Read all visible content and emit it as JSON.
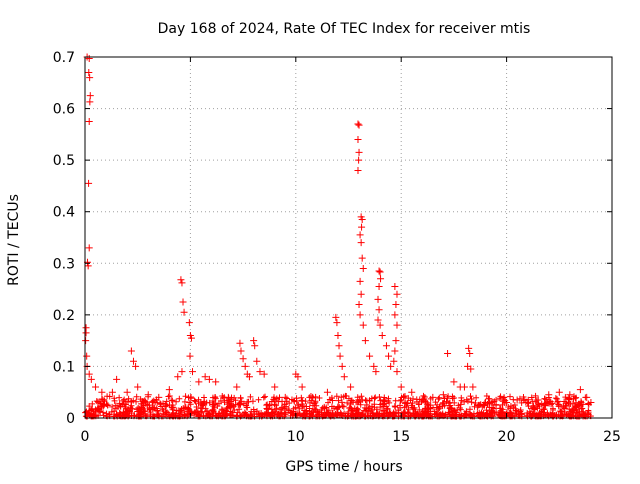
{
  "chart_data": {
    "type": "scatter",
    "title": "Day 168 of 2024, Rate Of TEC Index for receiver mtis",
    "xlabel": "GPS time / hours",
    "ylabel": "ROTI / TECUs",
    "xlim": [
      0,
      25
    ],
    "ylim": [
      0,
      0.7
    ],
    "xticks": [
      0,
      5,
      10,
      15,
      20,
      25
    ],
    "xtick_labels": [
      "0",
      "5",
      "10",
      "15",
      "20",
      "25"
    ],
    "yticks": [
      0,
      0.1,
      0.2,
      0.3,
      0.4,
      0.5,
      0.6,
      0.7
    ],
    "ytick_labels": [
      "0",
      "0.1",
      "0.2",
      "0.3",
      "0.4",
      "0.5",
      "0.6",
      "0.7"
    ],
    "grid": true,
    "marker": "plus",
    "color": "#ff0000",
    "series": [
      {
        "name": "ROTI",
        "points": [
          [
            0.1,
            0.7
          ],
          [
            0.2,
            0.697
          ],
          [
            0.18,
            0.67
          ],
          [
            0.22,
            0.66
          ],
          [
            0.25,
            0.625
          ],
          [
            0.23,
            0.613
          ],
          [
            0.2,
            0.575
          ],
          [
            0.17,
            0.455
          ],
          [
            0.2,
            0.33
          ],
          [
            0.12,
            0.302
          ],
          [
            0.15,
            0.295
          ],
          [
            0.05,
            0.175
          ],
          [
            0.05,
            0.165
          ],
          [
            0.03,
            0.15
          ],
          [
            0.08,
            0.12
          ],
          [
            0.1,
            0.1
          ],
          [
            0.2,
            0.085
          ],
          [
            0.3,
            0.075
          ],
          [
            0.5,
            0.06
          ],
          [
            0.8,
            0.05
          ],
          [
            1.3,
            0.05
          ],
          [
            1.5,
            0.075
          ],
          [
            2.0,
            0.05
          ],
          [
            2.2,
            0.13
          ],
          [
            2.3,
            0.11
          ],
          [
            2.4,
            0.1
          ],
          [
            2.5,
            0.06
          ],
          [
            3.0,
            0.045
          ],
          [
            3.5,
            0.04
          ],
          [
            4.0,
            0.055
          ],
          [
            4.4,
            0.08
          ],
          [
            4.6,
            0.09
          ],
          [
            4.55,
            0.268
          ],
          [
            4.6,
            0.262
          ],
          [
            4.65,
            0.225
          ],
          [
            4.7,
            0.205
          ],
          [
            4.95,
            0.185
          ],
          [
            5.0,
            0.16
          ],
          [
            5.05,
            0.155
          ],
          [
            4.98,
            0.12
          ],
          [
            5.1,
            0.09
          ],
          [
            5.4,
            0.07
          ],
          [
            5.7,
            0.08
          ],
          [
            5.9,
            0.075
          ],
          [
            6.2,
            0.07
          ],
          [
            6.8,
            0.04
          ],
          [
            7.2,
            0.06
          ],
          [
            7.35,
            0.145
          ],
          [
            7.4,
            0.13
          ],
          [
            7.5,
            0.115
          ],
          [
            7.6,
            0.1
          ],
          [
            7.7,
            0.085
          ],
          [
            7.8,
            0.08
          ],
          [
            8.0,
            0.15
          ],
          [
            8.05,
            0.14
          ],
          [
            8.15,
            0.11
          ],
          [
            8.3,
            0.09
          ],
          [
            8.5,
            0.085
          ],
          [
            9.0,
            0.06
          ],
          [
            9.5,
            0.04
          ],
          [
            10.0,
            0.085
          ],
          [
            10.1,
            0.08
          ],
          [
            10.3,
            0.06
          ],
          [
            10.8,
            0.04
          ],
          [
            11.5,
            0.05
          ],
          [
            11.9,
            0.195
          ],
          [
            11.95,
            0.185
          ],
          [
            12.0,
            0.16
          ],
          [
            12.05,
            0.14
          ],
          [
            12.1,
            0.12
          ],
          [
            12.2,
            0.1
          ],
          [
            12.3,
            0.08
          ],
          [
            12.6,
            0.06
          ],
          [
            12.95,
            0.57
          ],
          [
            13.0,
            0.568
          ],
          [
            12.95,
            0.54
          ],
          [
            13.0,
            0.515
          ],
          [
            12.98,
            0.5
          ],
          [
            12.95,
            0.48
          ],
          [
            13.1,
            0.39
          ],
          [
            13.15,
            0.385
          ],
          [
            13.12,
            0.37
          ],
          [
            13.05,
            0.355
          ],
          [
            13.1,
            0.34
          ],
          [
            13.15,
            0.31
          ],
          [
            13.2,
            0.29
          ],
          [
            13.05,
            0.265
          ],
          [
            13.1,
            0.24
          ],
          [
            13.0,
            0.22
          ],
          [
            13.05,
            0.2
          ],
          [
            13.2,
            0.18
          ],
          [
            13.3,
            0.15
          ],
          [
            13.5,
            0.12
          ],
          [
            13.7,
            0.1
          ],
          [
            13.8,
            0.09
          ],
          [
            13.95,
            0.285
          ],
          [
            14.0,
            0.283
          ],
          [
            14.02,
            0.27
          ],
          [
            13.95,
            0.255
          ],
          [
            13.9,
            0.23
          ],
          [
            13.95,
            0.21
          ],
          [
            13.9,
            0.19
          ],
          [
            14.0,
            0.18
          ],
          [
            14.1,
            0.16
          ],
          [
            14.3,
            0.14
          ],
          [
            14.4,
            0.12
          ],
          [
            14.5,
            0.1
          ],
          [
            14.7,
            0.255
          ],
          [
            14.8,
            0.24
          ],
          [
            14.75,
            0.22
          ],
          [
            14.7,
            0.2
          ],
          [
            14.8,
            0.18
          ],
          [
            14.75,
            0.15
          ],
          [
            14.7,
            0.13
          ],
          [
            14.65,
            0.11
          ],
          [
            14.8,
            0.09
          ],
          [
            15.0,
            0.06
          ],
          [
            15.5,
            0.05
          ],
          [
            16.0,
            0.035
          ],
          [
            16.5,
            0.04
          ],
          [
            17.0,
            0.045
          ],
          [
            17.2,
            0.125
          ],
          [
            17.5,
            0.07
          ],
          [
            17.8,
            0.06
          ],
          [
            18.0,
            0.06
          ],
          [
            18.2,
            0.135
          ],
          [
            18.25,
            0.125
          ],
          [
            18.15,
            0.1
          ],
          [
            18.3,
            0.095
          ],
          [
            18.4,
            0.06
          ],
          [
            19.0,
            0.03
          ],
          [
            19.5,
            0.025
          ],
          [
            20.0,
            0.03
          ],
          [
            20.5,
            0.035
          ],
          [
            21.0,
            0.03
          ],
          [
            21.5,
            0.035
          ],
          [
            22.0,
            0.045
          ],
          [
            22.5,
            0.05
          ],
          [
            23.0,
            0.045
          ],
          [
            23.5,
            0.055
          ],
          [
            23.8,
            0.04
          ],
          [
            24.0,
            0.03
          ]
        ]
      }
    ]
  }
}
